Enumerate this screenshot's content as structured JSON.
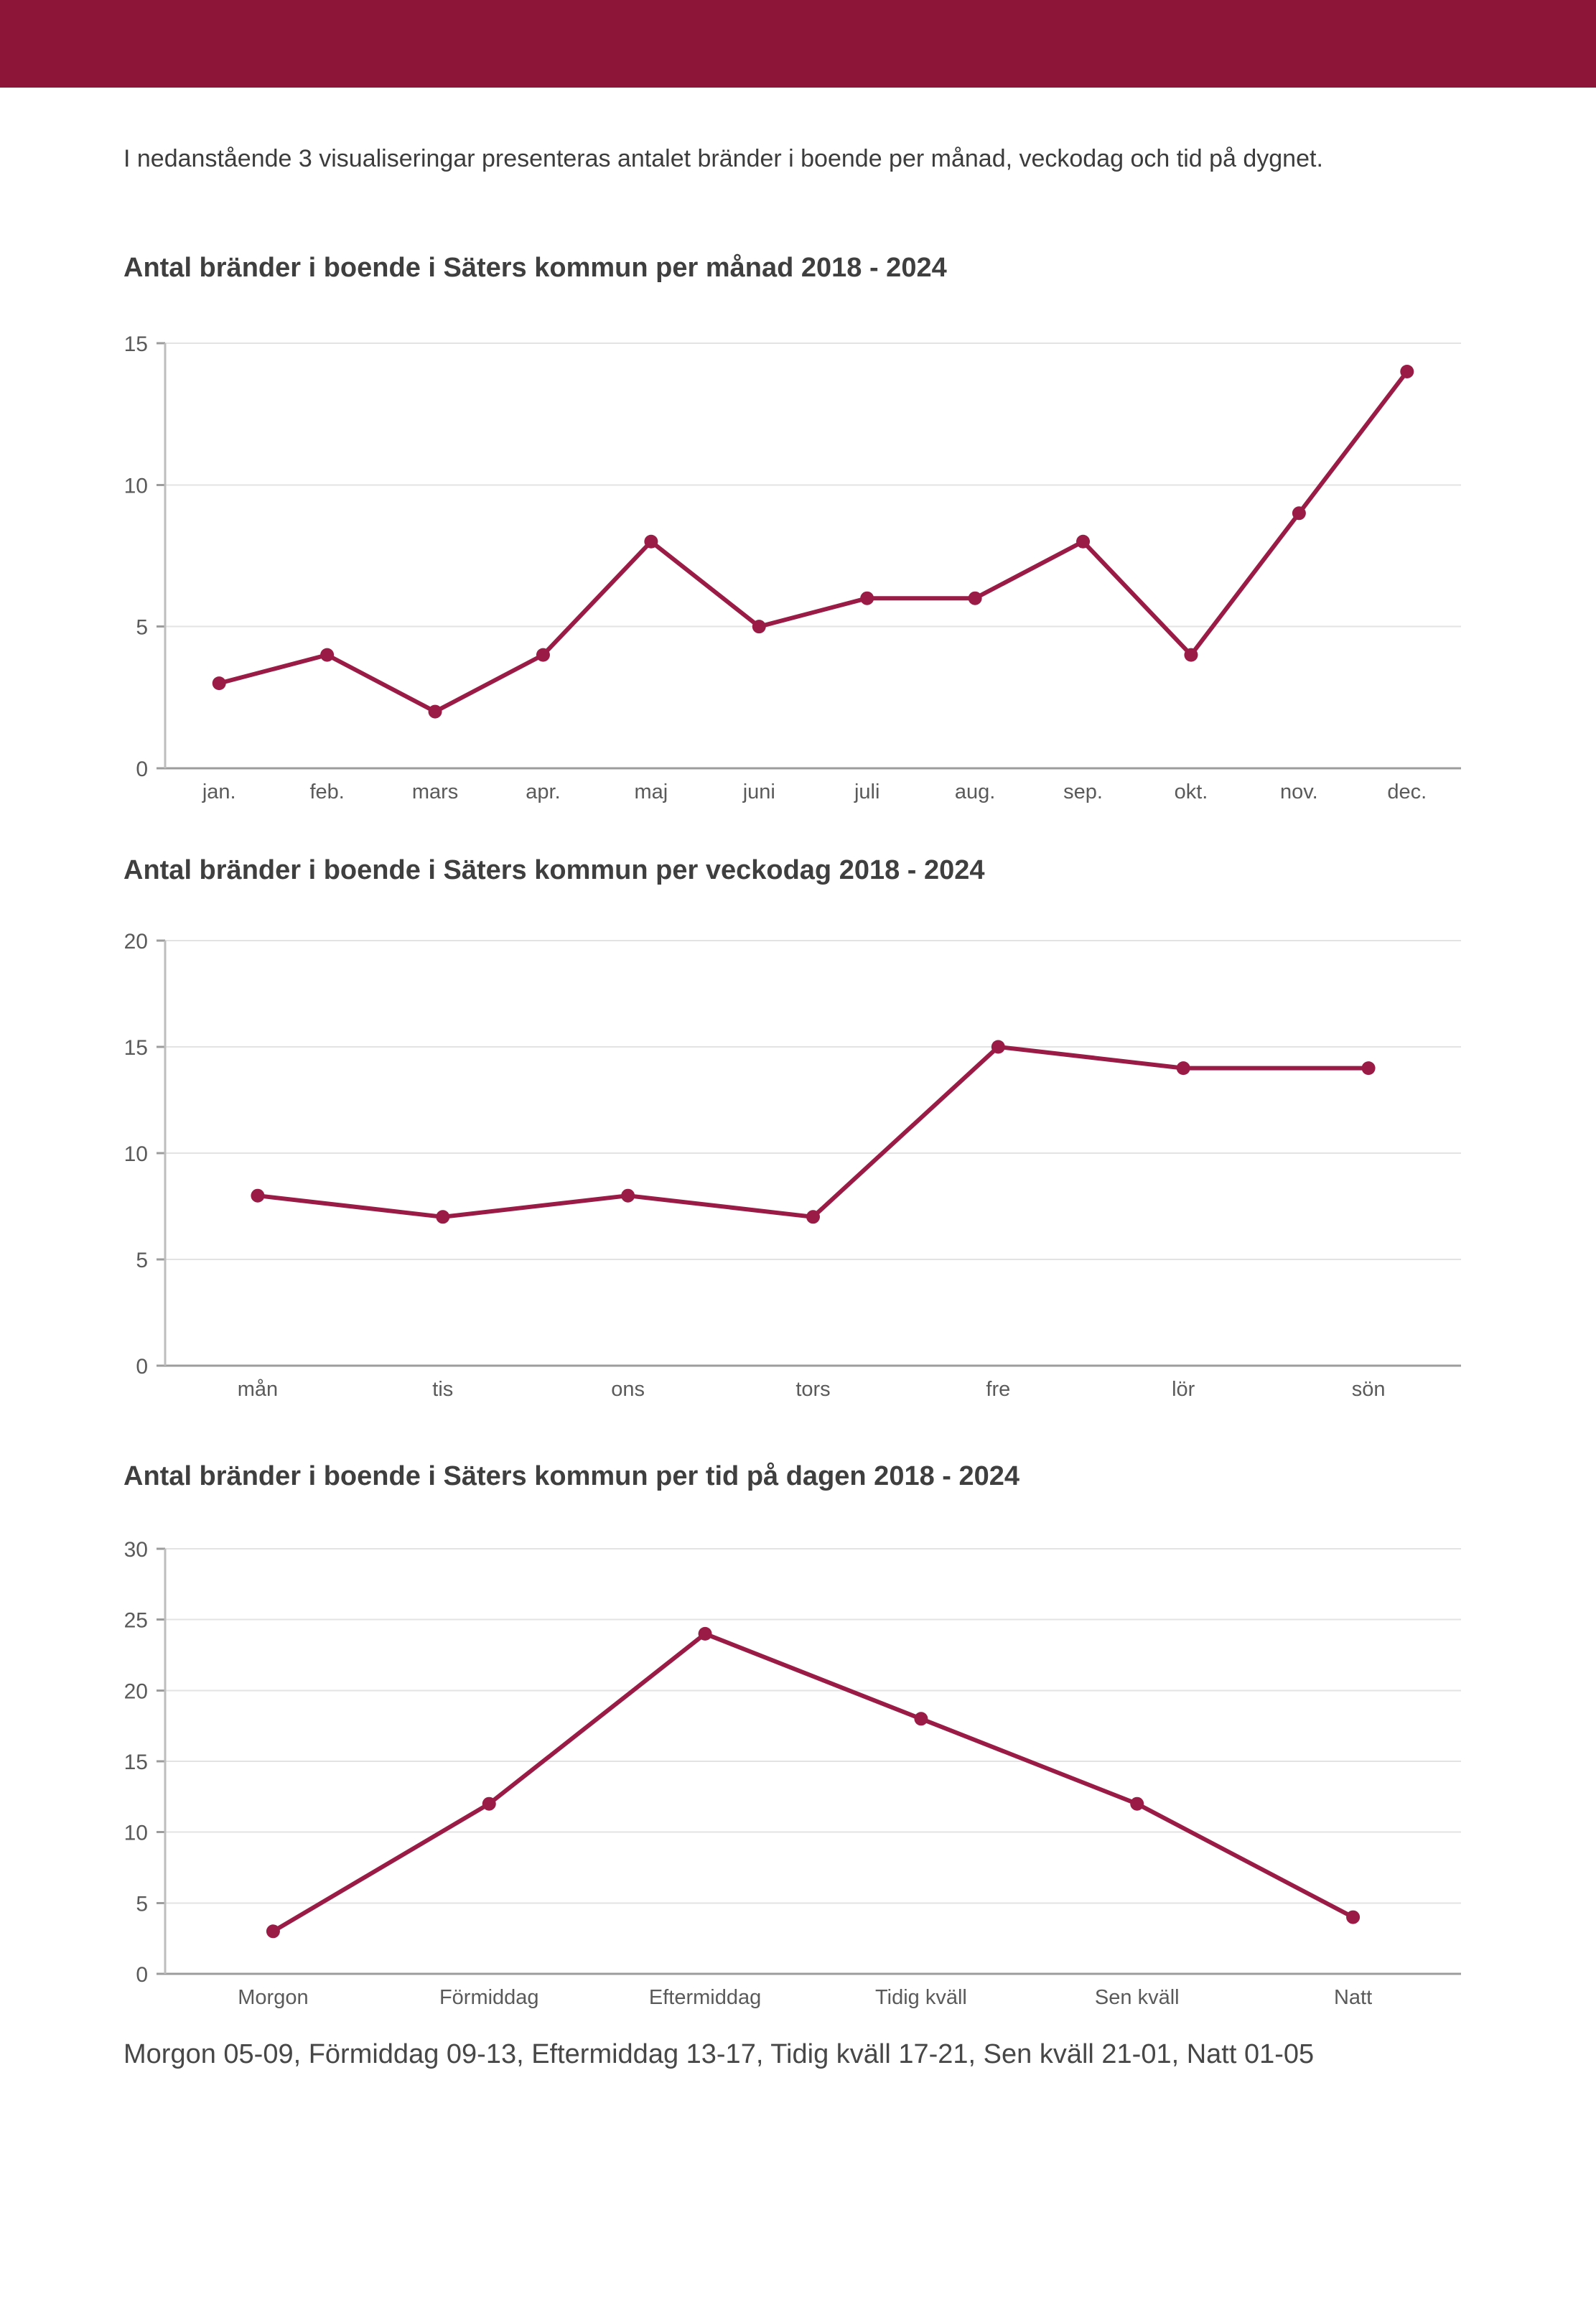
{
  "page": {
    "intro": "I nedanstående 3 visualiseringar presenteras antalet bränder i boende per månad, veckodag och tid på dygnet.",
    "footer": "Morgon 05-09, Förmiddag 09-13, Eftermiddag 13-17, Tidig kväll 17-21, Sen kväll 21-01, Natt 01-05"
  },
  "colors": {
    "header_bar": "#8D1537",
    "line": "#9B1B47",
    "grid": "#E3E3E3",
    "axis": "#9C9C9C",
    "axis_left": "#BDBDBD",
    "tick_label": "#5A5A5A",
    "title": "#3F3F3F",
    "intro_text": "#3C3C3C",
    "footer_text": "#474747"
  },
  "chart_data": [
    {
      "type": "line",
      "title": "Antal bränder i boende i Säters kommun per månad 2018 - 2024",
      "categories": [
        "jan.",
        "feb.",
        "mars",
        "apr.",
        "maj",
        "juni",
        "juli",
        "aug.",
        "sep.",
        "okt.",
        "nov.",
        "dec."
      ],
      "values": [
        3,
        4,
        2,
        4,
        8,
        5,
        6,
        6,
        8,
        4,
        9,
        14
      ],
      "xlabel": "",
      "ylabel": "",
      "ylim": [
        0,
        15
      ],
      "ytick_step": 5,
      "grid": true,
      "legend": "none",
      "marker": "circle"
    },
    {
      "type": "line",
      "title": "Antal bränder i boende i Säters kommun per veckodag 2018 - 2024",
      "categories": [
        "mån",
        "tis",
        "ons",
        "tors",
        "fre",
        "lör",
        "sön"
      ],
      "values": [
        8,
        7,
        8,
        7,
        15,
        14,
        14
      ],
      "xlabel": "",
      "ylabel": "",
      "ylim": [
        0,
        20
      ],
      "ytick_step": 5,
      "grid": true,
      "legend": "none",
      "marker": "circle"
    },
    {
      "type": "line",
      "title": "Antal bränder i boende i Säters kommun per tid på dagen 2018 - 2024",
      "categories": [
        "Morgon",
        "Förmiddag",
        "Eftermiddag",
        "Tidig kväll",
        "Sen kväll",
        "Natt"
      ],
      "values": [
        3,
        12,
        24,
        18,
        12,
        4
      ],
      "xlabel": "",
      "ylabel": "",
      "ylim": [
        0,
        30
      ],
      "ytick_step": 5,
      "grid": true,
      "legend": "none",
      "marker": "circle"
    }
  ]
}
